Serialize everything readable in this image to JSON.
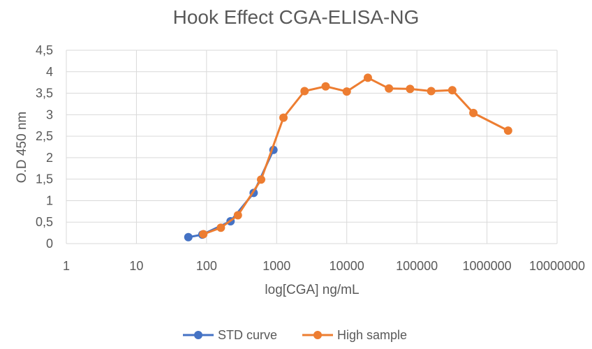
{
  "chart_data": {
    "type": "line",
    "title": "Hook Effect CGA-ELISA-NG",
    "xlabel": "log[CGA] ng/mL",
    "ylabel": "O.D 450 nm",
    "x_scale": "log",
    "xlim": [
      1,
      10000000
    ],
    "ylim": [
      0,
      4.5
    ],
    "x_tick_labels": [
      "1",
      "10",
      "100",
      "1000",
      "10000",
      "100000",
      "1000000",
      "10000000"
    ],
    "y_tick_labels": [
      "0",
      "0,5",
      "1",
      "1,5",
      "2",
      "2,5",
      "3",
      "3,5",
      "4",
      "4,5"
    ],
    "grid": true,
    "legend_position": "bottom",
    "series": [
      {
        "name": "STD curve",
        "color": "#4472c4",
        "x": [
          55,
          87,
          220,
          470,
          900
        ],
        "y": [
          0.15,
          0.21,
          0.52,
          1.18,
          2.18
        ]
      },
      {
        "name": "High sample",
        "color": "#ed7d31",
        "x": [
          90,
          160,
          280,
          600,
          1250,
          2500,
          5000,
          10000,
          20000,
          40000,
          80000,
          160000,
          320000,
          640000,
          2000000
        ],
        "y": [
          0.22,
          0.37,
          0.66,
          1.49,
          2.93,
          3.55,
          3.66,
          3.54,
          3.86,
          3.61,
          3.6,
          3.55,
          3.57,
          3.04,
          2.63
        ]
      }
    ]
  }
}
